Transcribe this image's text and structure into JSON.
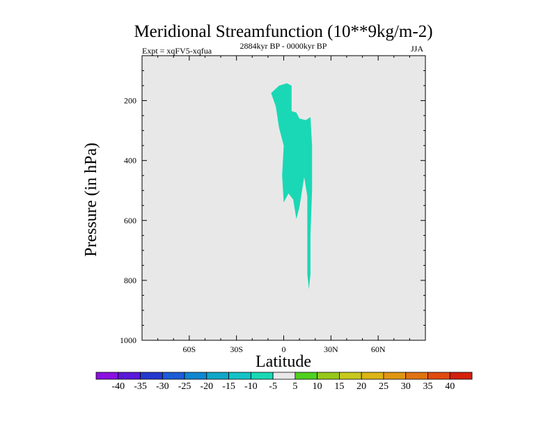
{
  "chart_data": {
    "type": "contour",
    "title": "Meridional Streamfunction (10**9kg/m-2)",
    "subtitle_left": "Expt = xqFV5-xqfua",
    "subtitle_center": "2884kyr BP - 0000kyr BP",
    "subtitle_right": "JJA",
    "xlabel": "Latitude",
    "ylabel": "Pressure (in hPa)",
    "xlim": [
      -90,
      90
    ],
    "ylim": [
      1000,
      50
    ],
    "x_ticks": [
      {
        "value": -60,
        "label": "60S"
      },
      {
        "value": -30,
        "label": "30S"
      },
      {
        "value": 0,
        "label": "0"
      },
      {
        "value": 30,
        "label": "30N"
      },
      {
        "value": 60,
        "label": "60N"
      }
    ],
    "y_ticks": [
      {
        "value": 200,
        "label": "200"
      },
      {
        "value": 400,
        "label": "400"
      },
      {
        "value": 600,
        "label": "600"
      },
      {
        "value": 800,
        "label": "800"
      },
      {
        "value": 1000,
        "label": "1000"
      }
    ],
    "background_color": "#e8e8e8",
    "filled_regions": [
      {
        "level_range": [
          -10,
          -5
        ],
        "color": "#1ad8b5",
        "outline": [
          [
            -8,
            175
          ],
          [
            -3,
            150
          ],
          [
            2,
            142
          ],
          [
            5,
            150
          ],
          [
            5,
            235
          ],
          [
            8,
            240
          ],
          [
            10,
            260
          ],
          [
            14,
            265
          ],
          [
            17,
            255
          ],
          [
            18,
            350
          ],
          [
            18,
            500
          ],
          [
            17,
            650
          ],
          [
            17,
            780
          ],
          [
            16,
            830
          ],
          [
            15,
            780
          ],
          [
            15,
            690
          ],
          [
            15,
            520
          ],
          [
            13,
            455
          ],
          [
            10,
            555
          ],
          [
            8,
            595
          ],
          [
            6,
            530
          ],
          [
            3,
            510
          ],
          [
            0,
            540
          ],
          [
            -1,
            450
          ],
          [
            0,
            350
          ],
          [
            -3,
            290
          ],
          [
            -5,
            220
          ]
        ]
      }
    ],
    "colorbar": {
      "labels": [
        "-40",
        "-35",
        "-30",
        "-25",
        "-20",
        "-15",
        "-10",
        "-5",
        "5",
        "10",
        "15",
        "20",
        "25",
        "30",
        "35",
        "40"
      ],
      "colors": [
        "#8a10e0",
        "#5a18d8",
        "#2438d0",
        "#1c5cd8",
        "#0e86d0",
        "#10a6c8",
        "#14c2c6",
        "#1ad8b5",
        "#e8e8e8",
        "#50d020",
        "#96c81a",
        "#c8c81c",
        "#dcb414",
        "#e09612",
        "#e07210",
        "#e04a0e",
        "#d4200c"
      ]
    }
  }
}
